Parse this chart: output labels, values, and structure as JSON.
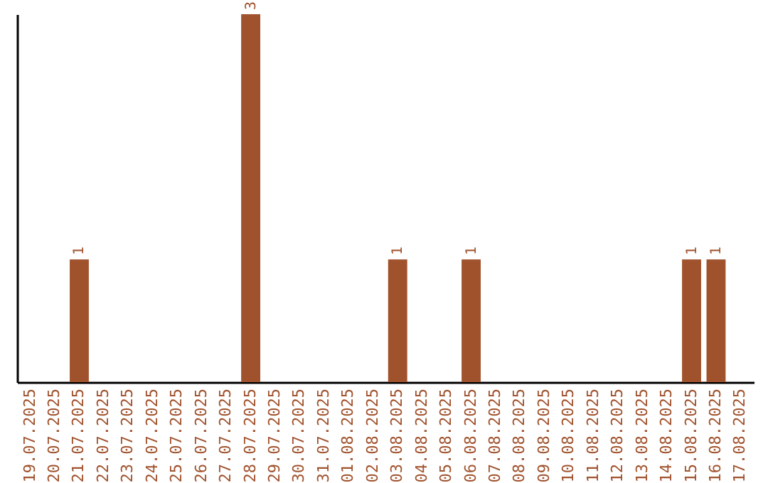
{
  "chart_data": {
    "type": "bar",
    "categories": [
      "19.07.2025",
      "20.07.2025",
      "21.07.2025",
      "22.07.2025",
      "23.07.2025",
      "24.07.2025",
      "25.07.2025",
      "26.07.2025",
      "27.07.2025",
      "28.07.2025",
      "29.07.2025",
      "30.07.2025",
      "31.07.2025",
      "01.08.2025",
      "02.08.2025",
      "03.08.2025",
      "04.08.2025",
      "05.08.2025",
      "06.08.2025",
      "07.08.2025",
      "08.08.2025",
      "09.08.2025",
      "10.08.2025",
      "11.08.2025",
      "12.08.2025",
      "13.08.2025",
      "14.08.2025",
      "15.08.2025",
      "16.08.2025",
      "17.08.2025"
    ],
    "values": [
      0,
      0,
      1,
      0,
      0,
      0,
      0,
      0,
      0,
      3,
      0,
      0,
      0,
      0,
      0,
      1,
      0,
      0,
      1,
      0,
      0,
      0,
      0,
      0,
      0,
      0,
      0,
      1,
      1,
      0
    ],
    "value_labels": [
      null,
      null,
      "1",
      null,
      null,
      null,
      null,
      null,
      null,
      "3",
      null,
      null,
      null,
      null,
      null,
      "1",
      null,
      null,
      "1",
      null,
      null,
      null,
      null,
      null,
      null,
      null,
      null,
      "1",
      "1",
      null
    ],
    "color": "#a0522d",
    "grid": false,
    "tick_labels": "x"
  }
}
